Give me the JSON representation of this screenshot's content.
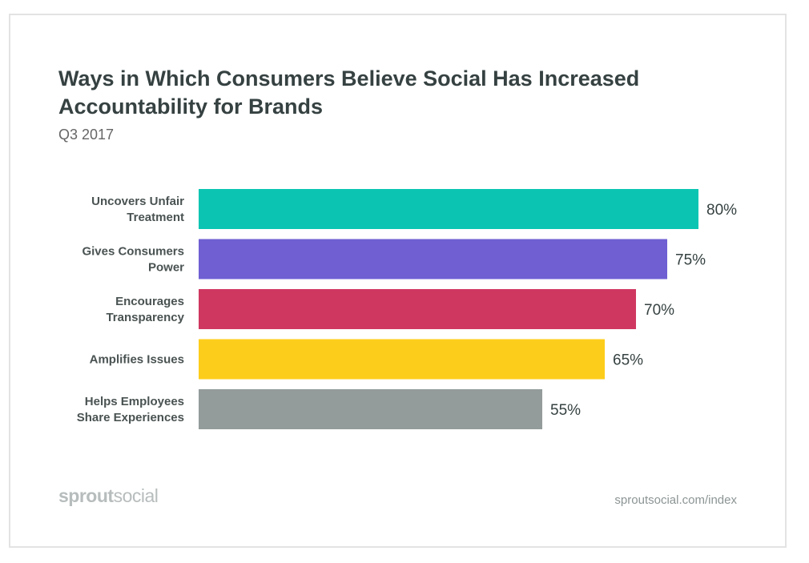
{
  "title": "Ways in Which Consumers Believe Social Has Increased Accountability for Brands",
  "subtitle": "Q3 2017",
  "footer": {
    "logo_part1": "sprout",
    "logo_part2": "social",
    "url": "sproutsocial.com/index"
  },
  "chart_data": {
    "type": "bar",
    "orientation": "horizontal",
    "title": "Ways in Which Consumers Believe Social Has Increased Accountability for Brands",
    "subtitle": "Q3 2017",
    "categories": [
      [
        "Uncovers Unfair",
        "Treatment"
      ],
      [
        "Gives Consumers",
        "Power"
      ],
      [
        "Encourages",
        "Transparency"
      ],
      [
        "Amplifies Issues"
      ],
      [
        "Helps Employees",
        "Share Experiences"
      ]
    ],
    "values": [
      80,
      75,
      70,
      65,
      55
    ],
    "value_labels": [
      "80%",
      "75%",
      "70%",
      "65%",
      "55%"
    ],
    "colors": [
      "#0bc5b2",
      "#6f5fd2",
      "#cf3761",
      "#fdcd1b",
      "#939b9b"
    ],
    "xlim": [
      0,
      80
    ],
    "grid": false,
    "legend": "none"
  }
}
